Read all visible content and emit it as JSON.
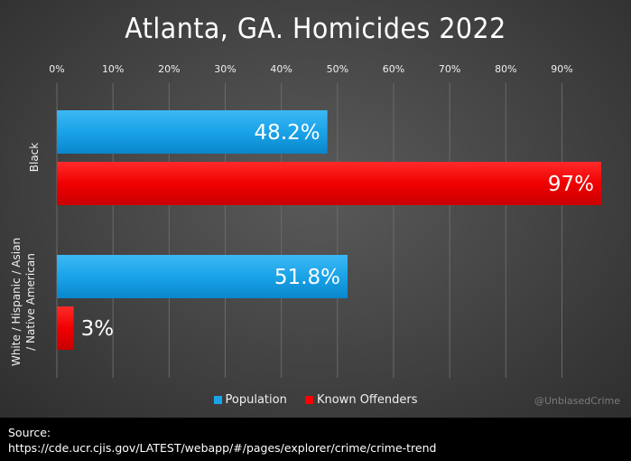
{
  "chart_data": {
    "type": "bar",
    "orientation": "horizontal",
    "title": "Atlanta, GA. Homicides 2022",
    "categories": [
      "Black",
      "White / Hispanic / Asian / Native American"
    ],
    "category_label_lines": [
      [
        "Black"
      ],
      [
        "White / Hispanic / Asian",
        "/ Native American"
      ]
    ],
    "series": [
      {
        "name": "Population",
        "values": [
          48.2,
          51.8
        ],
        "labels": [
          "48.2%",
          "51.8%"
        ],
        "color": "#1aa3e8"
      },
      {
        "name": "Known Offenders",
        "values": [
          97,
          3
        ],
        "labels": [
          "97%",
          "3%"
        ],
        "color": "#ff0000"
      }
    ],
    "xlim": [
      0,
      97
    ],
    "xticks": [
      0,
      10,
      20,
      30,
      40,
      50,
      60,
      70,
      80,
      90
    ],
    "xtick_labels": [
      "0%",
      "10%",
      "20%",
      "30%",
      "40%",
      "50%",
      "60%",
      "70%",
      "80%",
      "90%"
    ],
    "grid": true,
    "legend_position": "bottom"
  },
  "watermark": "@UnbiasedCrime",
  "source": {
    "label": "Source:",
    "url": "https://cde.ucr.cjis.gov/LATEST/webapp/#/pages/explorer/crime/crime-trend"
  },
  "colors": {
    "population": "#1aa3e8",
    "offenders": "#ff0000",
    "background": "#474747"
  }
}
